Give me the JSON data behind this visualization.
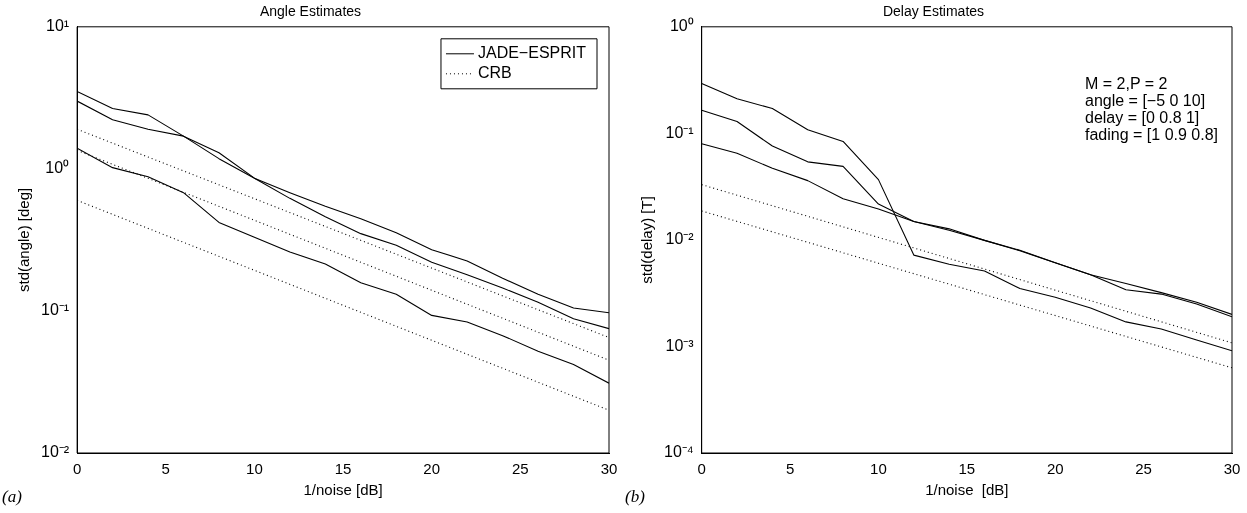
{
  "chart_data": [
    {
      "type": "line",
      "title": "Angle Estimates",
      "xlabel": "1/noise [dB]",
      "ylabel": "std(angle) [deg]",
      "log": "y",
      "xlim": [
        0,
        30
      ],
      "xticks": [
        0,
        5,
        10,
        15,
        20,
        25,
        30
      ],
      "ylim": [
        0.01,
        10
      ],
      "yticks": [
        {
          "value": 0.01,
          "label": "10⁻²"
        },
        {
          "value": 0.1,
          "label": "10⁻¹"
        },
        {
          "value": 1,
          "label": "10⁰"
        },
        {
          "value": 10,
          "label": "10¹"
        }
      ],
      "grid": false,
      "legend": "top right",
      "marker": "none",
      "annotations": [
        "(a)"
      ],
      "series": [
        {
          "name": "JADE−ESPRIT",
          "color": "#000000",
          "line_style": "solid",
          "x": [
            0,
            2,
            4,
            6,
            8,
            10,
            12,
            14,
            16,
            18,
            20,
            22,
            24,
            26,
            28,
            30
          ],
          "values": [
            3.5,
            2.66,
            2.4,
            1.7,
            1.3,
            0.86,
            0.62,
            0.46,
            0.35,
            0.29,
            0.22,
            0.18,
            0.145,
            0.115,
            0.088,
            0.075
          ]
        },
        {
          "color": "#000000",
          "line_style": "solid",
          "x": [
            0,
            2,
            4,
            6,
            8,
            10,
            12,
            14,
            16,
            18,
            20,
            22,
            24,
            26,
            28,
            30
          ],
          "values": [
            3.0,
            2.22,
            1.9,
            1.7,
            1.18,
            0.86,
            0.68,
            0.545,
            0.445,
            0.355,
            0.27,
            0.225,
            0.17,
            0.131,
            0.105,
            0.097
          ]
        },
        {
          "color": "#000000",
          "line_style": "solid",
          "x": [
            0,
            2,
            4,
            6,
            8,
            10,
            12,
            14,
            16,
            18,
            20,
            22,
            24,
            26,
            28,
            30
          ],
          "values": [
            1.4,
            1.02,
            0.88,
            0.68,
            0.42,
            0.33,
            0.26,
            0.214,
            0.158,
            0.131,
            0.093,
            0.0835,
            0.067,
            0.052,
            0.042,
            0.031
          ]
        },
        {
          "name": "CRB",
          "color": "#000000",
          "line_style": "dotted",
          "x": [
            0,
            30
          ],
          "values": [
            1.9,
            0.065
          ]
        },
        {
          "color": "#000000",
          "line_style": "dotted",
          "x": [
            0,
            30
          ],
          "values": [
            1.35,
            0.045
          ]
        },
        {
          "color": "#000000",
          "line_style": "dotted",
          "x": [
            0,
            30
          ],
          "values": [
            0.6,
            0.02
          ]
        }
      ]
    },
    {
      "type": "line",
      "title": "Delay Estimates",
      "xlabel": "1/noise  [dB]",
      "ylabel": "std(delay) [T]",
      "log": "y",
      "xlim": [
        0,
        30
      ],
      "xticks": [
        0,
        5,
        10,
        15,
        20,
        25,
        30
      ],
      "ylim": [
        0.0001,
        1
      ],
      "yticks": [
        {
          "value": 0.0001,
          "label": "10⁻⁴"
        },
        {
          "value": 0.001,
          "label": "10⁻³"
        },
        {
          "value": 0.01,
          "label": "10⁻²"
        },
        {
          "value": 0.1,
          "label": "10⁻¹"
        },
        {
          "value": 1,
          "label": "10⁰"
        }
      ],
      "grid": false,
      "legend": false,
      "marker": "none",
      "annotations": [
        "(b)",
        "M = 2,P = 2",
        "angle = [−5 0 10]",
        "delay = [0 0.8 1]",
        "fading = [1 0.9 0.8]"
      ],
      "series": [
        {
          "color": "#000000",
          "line_style": "solid",
          "x": [
            0,
            2,
            4,
            6,
            8,
            10,
            12,
            14,
            16,
            18,
            20,
            22,
            24,
            26,
            28,
            30
          ],
          "values": [
            0.294,
            0.211,
            0.171,
            0.108,
            0.084,
            0.0368,
            0.0072,
            0.0059,
            0.0051,
            0.0035,
            0.0029,
            0.0023,
            0.0017,
            0.00146,
            0.00115,
            0.00091
          ]
        },
        {
          "color": "#000000",
          "line_style": "solid",
          "x": [
            0,
            2,
            4,
            6,
            8,
            10,
            12,
            14,
            16,
            18,
            20,
            22,
            24,
            26,
            28,
            30
          ],
          "values": [
            0.165,
            0.129,
            0.076,
            0.054,
            0.049,
            0.0217,
            0.0149,
            0.0127,
            0.0099,
            0.0079,
            0.0061,
            0.0047,
            0.0034,
            0.0031,
            0.0025,
            0.0019
          ]
        },
        {
          "color": "#000000",
          "line_style": "solid",
          "x": [
            0,
            2,
            4,
            6,
            8,
            10,
            12,
            14,
            16,
            18,
            20,
            22,
            24,
            26,
            28,
            30
          ],
          "values": [
            0.08,
            0.065,
            0.047,
            0.036,
            0.0243,
            0.0195,
            0.0149,
            0.0123,
            0.0099,
            0.008,
            0.0061,
            0.0047,
            0.0039,
            0.0032,
            0.0026,
            0.002
          ]
        },
        {
          "color": "#000000",
          "line_style": "dotted",
          "x": [
            0,
            30
          ],
          "values": [
            0.033,
            0.00108
          ]
        },
        {
          "color": "#000000",
          "line_style": "dotted",
          "x": [
            0,
            30
          ],
          "values": [
            0.0187,
            0.00063
          ]
        }
      ]
    }
  ]
}
